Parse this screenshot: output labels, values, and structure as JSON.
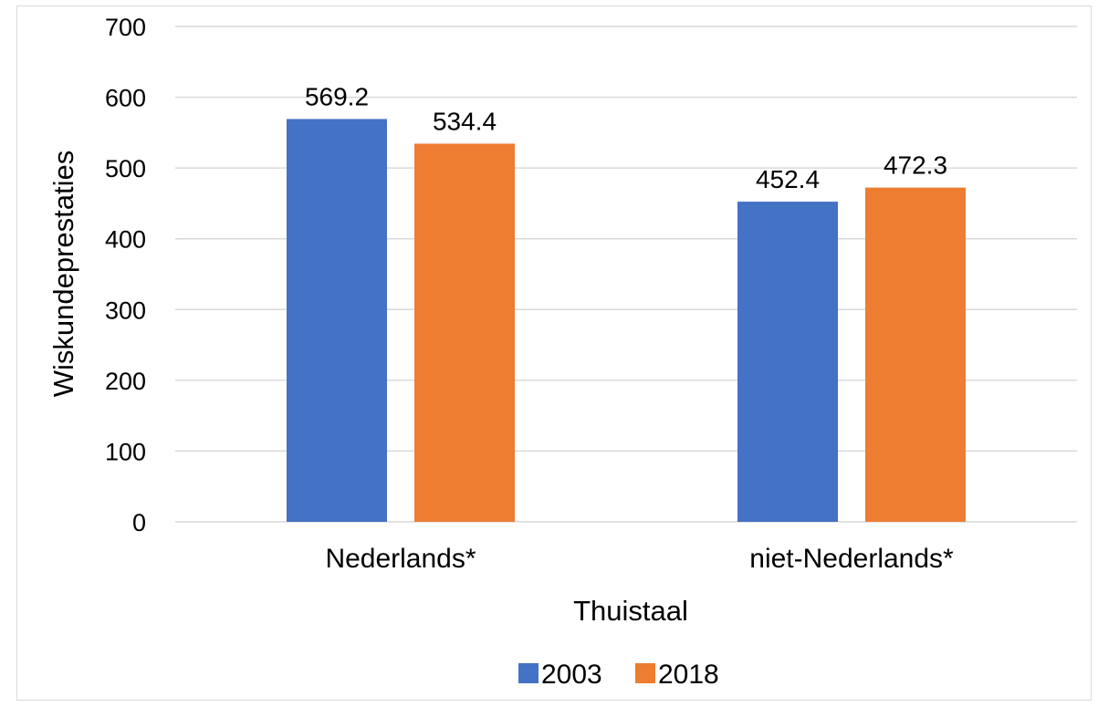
{
  "chart_data": {
    "type": "bar",
    "categories": [
      "Nederlands*",
      "niet-Nederlands*"
    ],
    "series": [
      {
        "name": "2003",
        "values": [
          569.2,
          452.4
        ],
        "color": "#4472c4"
      },
      {
        "name": "2018",
        "values": [
          534.4,
          472.3
        ],
        "color": "#ed7d31"
      }
    ],
    "data_labels": [
      [
        "569.2",
        "452.4"
      ],
      [
        "534.4",
        "472.3"
      ]
    ],
    "xlabel": "Thuistaal",
    "ylabel": "Wiskundeprestaties",
    "ylim": [
      0,
      700
    ],
    "yticks": [
      "0",
      "100",
      "200",
      "300",
      "400",
      "500",
      "600",
      "700"
    ],
    "grid": true,
    "gridline_color": "#d9d9d9",
    "legend_position": "bottom"
  }
}
